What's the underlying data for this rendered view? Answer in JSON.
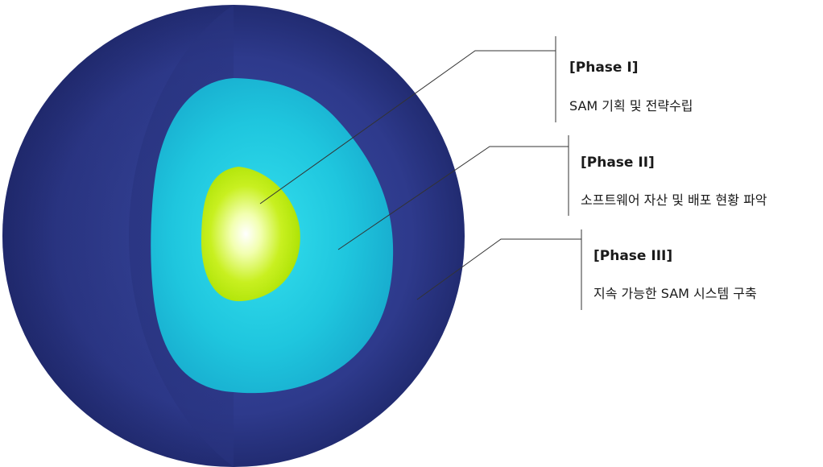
{
  "phases": [
    {
      "title": "[Phase I]",
      "description": "SAM 기획 및 전략수립"
    },
    {
      "title": "[Phase II]",
      "description": "소프트웨어 자산 및 배포 현황 파악"
    },
    {
      "title": "[Phase III]",
      "description": "지속 가능한 SAM 시스템 구축"
    }
  ],
  "colors": {
    "outer_layer": "#2e3a8c",
    "outer_layer_dark": "#1f2a6e",
    "middle_layer": "#1fc8df",
    "core": "#c8f020",
    "core_highlight": "#ffffff",
    "leader_line": "#333333"
  }
}
